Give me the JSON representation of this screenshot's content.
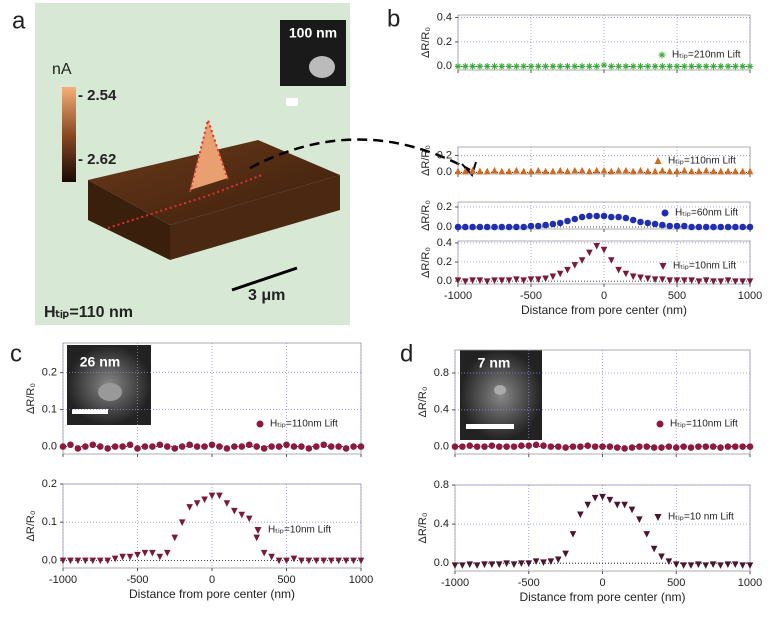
{
  "panel_labels": [
    "a",
    "b",
    "c",
    "d"
  ],
  "panel_a": {
    "unit": "nA",
    "colorbar_top": "- 2.54",
    "colorbar_bottom": "- 2.62",
    "inset_label": "100 nm",
    "scale_label": "3 μm",
    "caption": "Hₜᵢₚ=110 nm"
  },
  "insets": [
    "26 nm",
    "7 nm"
  ],
  "chart_data": [
    {
      "type": "scatter",
      "ylabel": "ΔR/R₀",
      "x": [
        -1000,
        -950,
        -900,
        -850,
        -800,
        -750,
        -700,
        -650,
        -600,
        -550,
        -500,
        -450,
        -400,
        -350,
        -300,
        -250,
        -200,
        -150,
        -100,
        -50,
        0,
        50,
        100,
        150,
        200,
        250,
        300,
        350,
        400,
        450,
        500,
        550,
        600,
        650,
        700,
        750,
        800,
        850,
        900,
        950,
        1000
      ],
      "series": [
        {
          "name": "Hₜᵢₚ=210nm Lift",
          "color": "#3aaa3a",
          "marker": "star",
          "values": [
            0,
            0,
            0,
            0,
            0,
            0,
            0,
            0,
            0,
            0,
            0,
            0,
            0,
            0,
            0,
            0,
            0,
            0,
            0,
            0,
            0.01,
            0,
            0,
            0,
            0,
            0,
            0,
            0,
            0,
            0,
            0,
            0,
            0,
            0,
            0,
            0,
            0,
            0,
            0,
            0,
            0
          ]
        }
      ],
      "xlim": [
        -1000,
        1000
      ],
      "xticks": [
        -1000,
        -500,
        0,
        500,
        1000
      ],
      "ylim": [
        -0.03,
        0.42
      ],
      "yticks": [
        {
          "value": 0,
          "label": "0.0"
        },
        0.2,
        0.4
      ],
      "grid": true
    },
    {
      "type": "scatter",
      "ylabel": "ΔR/R₀",
      "x": [
        -1000,
        -950,
        -900,
        -850,
        -800,
        -750,
        -700,
        -650,
        -600,
        -550,
        -500,
        -450,
        -400,
        -350,
        -300,
        -250,
        -200,
        -150,
        -100,
        -50,
        0,
        50,
        100,
        150,
        200,
        250,
        300,
        350,
        400,
        450,
        500,
        550,
        600,
        650,
        700,
        750,
        800,
        850,
        900,
        950,
        1000
      ],
      "series": [
        {
          "name": "Hₜᵢₚ=110nm  Lift",
          "color": "#d2691e",
          "marker": "triangle-up",
          "values": [
            0.01,
            0.01,
            0.02,
            0.01,
            0.01,
            0.02,
            0.01,
            0.01,
            0.02,
            0.01,
            0.01,
            0.02,
            0.01,
            0.01,
            0.02,
            0.01,
            0.02,
            0.02,
            0.01,
            0.02,
            0.02,
            0.01,
            0.02,
            0.02,
            0.01,
            0.02,
            0.01,
            0.01,
            0.02,
            0.01,
            0.01,
            0.02,
            0.01,
            0.01,
            0.02,
            0.01,
            0.01,
            0.01,
            0.01,
            0.01,
            0.01
          ]
        }
      ],
      "xlim": [
        -1000,
        1000
      ],
      "xticks": [
        -1000,
        -500,
        0,
        500,
        1000
      ],
      "ylim": [
        -0.02,
        0.3
      ],
      "yticks": [
        {
          "value": 0,
          "label": "0.0"
        },
        0.2
      ],
      "grid": true
    },
    {
      "type": "scatter",
      "ylabel": "ΔR/R₀",
      "x": [
        -1000,
        -950,
        -900,
        -850,
        -800,
        -750,
        -700,
        -650,
        -600,
        -550,
        -500,
        -450,
        -400,
        -350,
        -300,
        -250,
        -200,
        -150,
        -100,
        -50,
        0,
        50,
        100,
        150,
        200,
        250,
        300,
        350,
        400,
        450,
        500,
        550,
        600,
        650,
        700,
        750,
        800,
        850,
        900,
        950,
        1000
      ],
      "series": [
        {
          "name": "Hₜᵢₚ=60nm Lift",
          "color": "#1f2fb0",
          "marker": "circle",
          "values": [
            0,
            0,
            0,
            0,
            0,
            0,
            0,
            0,
            0,
            0,
            0.01,
            0.01,
            0.02,
            0.03,
            0.04,
            0.06,
            0.08,
            0.1,
            0.11,
            0.11,
            0.11,
            0.1,
            0.1,
            0.09,
            0.07,
            0.05,
            0.04,
            0.03,
            0.02,
            0.01,
            0.01,
            0.01,
            0,
            0,
            0,
            0,
            0,
            0,
            0,
            0,
            0
          ]
        }
      ],
      "xlim": [
        -1000,
        1000
      ],
      "xticks": [
        -1000,
        -500,
        0,
        500,
        1000
      ],
      "ylim": [
        -0.02,
        0.25
      ],
      "yticks": [
        {
          "value": 0,
          "label": "0.0"
        },
        0.2
      ],
      "grid": true
    },
    {
      "type": "scatter",
      "ylabel": "ΔR/R₀",
      "xlabel": "Distance from pore center (nm)",
      "show_xtick_labels": true,
      "x": [
        -1000,
        -950,
        -900,
        -850,
        -800,
        -750,
        -700,
        -650,
        -600,
        -550,
        -500,
        -450,
        -400,
        -350,
        -300,
        -250,
        -200,
        -150,
        -100,
        -50,
        0,
        50,
        100,
        150,
        200,
        250,
        300,
        350,
        400,
        450,
        500,
        550,
        600,
        650,
        700,
        750,
        800,
        850,
        900,
        950,
        1000
      ],
      "series": [
        {
          "name": "Hₜᵢₚ=10nm Lift",
          "color": "#7a1a3a",
          "marker": "triangle-down",
          "values": [
            0.01,
            0,
            0.01,
            0.01,
            0,
            0.01,
            0.01,
            0.01,
            0.02,
            0.01,
            0.02,
            0.02,
            0.03,
            0.05,
            0.08,
            0.12,
            0.17,
            0.22,
            0.3,
            0.37,
            0.33,
            0.22,
            0.12,
            0.08,
            0.05,
            0.04,
            0.03,
            0.02,
            0.02,
            0.01,
            0.01,
            0.01,
            0.01,
            0,
            0.01,
            0,
            0,
            0.01,
            0,
            0,
            0
          ]
        }
      ],
      "xlim": [
        -1000,
        1000
      ],
      "xticks": [
        -1000,
        -500,
        0,
        500,
        1000
      ],
      "ylim": [
        -0.03,
        0.42
      ],
      "yticks": [
        {
          "value": 0,
          "label": "0.0"
        },
        0.2,
        0.4
      ],
      "grid": true
    },
    {
      "type": "scatter",
      "ylabel": "ΔR/R₀",
      "x": [
        -1000,
        -950,
        -900,
        -850,
        -800,
        -750,
        -700,
        -650,
        -600,
        -550,
        -500,
        -450,
        -400,
        -350,
        -300,
        -250,
        -200,
        -150,
        -100,
        -50,
        0,
        50,
        100,
        150,
        200,
        250,
        300,
        350,
        400,
        450,
        500,
        550,
        600,
        650,
        700,
        750,
        800,
        850,
        900,
        950,
        1000
      ],
      "series": [
        {
          "name": "Hₜᵢₚ=110nm Lift",
          "color": "#8b1a3e",
          "marker": "circle",
          "values": [
            0,
            0.005,
            -0.005,
            0,
            0.005,
            0,
            -0.005,
            0,
            0,
            0.005,
            -0.005,
            0,
            0,
            0.005,
            0,
            -0.005,
            0,
            0.005,
            0,
            0,
            0.005,
            0,
            -0.005,
            0,
            0,
            0.005,
            0,
            -0.005,
            0,
            0,
            0.005,
            0,
            0,
            -0.005,
            0,
            0.005,
            0,
            0,
            -0.005,
            0,
            0
          ]
        }
      ],
      "xlim": [
        -1000,
        1000
      ],
      "xticks": [
        -1000,
        -500,
        0,
        500,
        1000
      ],
      "ylim": [
        -0.02,
        0.28
      ],
      "yticks": [
        {
          "value": 0,
          "label": "0.0"
        },
        0.1,
        0.2
      ],
      "grid": true
    },
    {
      "type": "scatter",
      "ylabel": "ΔR/R₀",
      "xlabel": "Distance from pore center (nm)",
      "show_xtick_labels": true,
      "x": [
        -1000,
        -950,
        -900,
        -850,
        -800,
        -750,
        -700,
        -650,
        -600,
        -550,
        -500,
        -450,
        -400,
        -350,
        -300,
        -250,
        -200,
        -150,
        -100,
        -50,
        0,
        50,
        100,
        150,
        200,
        250,
        300,
        350,
        400,
        450,
        500,
        550,
        600,
        650,
        700,
        750,
        800,
        850,
        900,
        950,
        1000
      ],
      "series": [
        {
          "name": "Hₜᵢₚ=10nm Lift",
          "color": "#7a1a3a",
          "marker": "triangle-down",
          "values": [
            0,
            0,
            0,
            0,
            0,
            0,
            0,
            0.005,
            0.01,
            0.01,
            0.015,
            0.02,
            0.02,
            0.01,
            0.02,
            0.06,
            0.1,
            0.14,
            0.15,
            0.16,
            0.17,
            0.17,
            0.15,
            0.13,
            0.12,
            0.11,
            0.06,
            0.02,
            0.01,
            0,
            0,
            0.005,
            0,
            0,
            0,
            0,
            0,
            0,
            0,
            0,
            0
          ]
        }
      ],
      "xlim": [
        -1000,
        1000
      ],
      "xticks": [
        -1000,
        -500,
        0,
        500,
        1000
      ],
      "ylim": [
        -0.02,
        0.2
      ],
      "yticks": [
        {
          "value": 0,
          "label": "0.0"
        },
        0.1,
        0.2
      ],
      "grid": true
    },
    {
      "type": "scatter",
      "ylabel": "ΔR/R₀",
      "x": [
        -1000,
        -950,
        -900,
        -850,
        -800,
        -750,
        -700,
        -650,
        -600,
        -550,
        -500,
        -450,
        -400,
        -350,
        -300,
        -250,
        -200,
        -150,
        -100,
        -50,
        0,
        50,
        100,
        150,
        200,
        250,
        300,
        350,
        400,
        450,
        500,
        550,
        600,
        650,
        700,
        750,
        800,
        850,
        900,
        950,
        1000
      ],
      "series": [
        {
          "name": "Hₜᵢₚ=110nm  Lift",
          "color": "#8b1a3e",
          "marker": "circle",
          "values": [
            0,
            0,
            0.01,
            0,
            0,
            0.01,
            0,
            0,
            0,
            0.01,
            0.01,
            0.02,
            0.01,
            0,
            0,
            -0.01,
            0,
            0,
            0.01,
            0,
            0,
            0,
            -0.01,
            -0.02,
            -0.01,
            0,
            0,
            -0.01,
            -0.01,
            0,
            -0.01,
            0,
            -0.01,
            0,
            0,
            0,
            -0.01,
            0,
            0,
            0,
            0
          ]
        }
      ],
      "xlim": [
        -1000,
        1000
      ],
      "xticks": [
        -1000,
        -500,
        0,
        500,
        1000
      ],
      "ylim": [
        -0.08,
        1.05
      ],
      "yticks": [
        {
          "value": 0,
          "label": "0.0"
        },
        0.4,
        0.8
      ],
      "grid": true
    },
    {
      "type": "scatter",
      "ylabel": "ΔR/R₀",
      "xlabel": "Distance from pore center (nm)",
      "show_xtick_labels": true,
      "x": [
        -1000,
        -950,
        -900,
        -850,
        -800,
        -750,
        -700,
        -650,
        -600,
        -550,
        -500,
        -450,
        -400,
        -350,
        -300,
        -250,
        -200,
        -150,
        -100,
        -50,
        0,
        50,
        100,
        150,
        200,
        250,
        300,
        350,
        400,
        450,
        500,
        550,
        600,
        650,
        700,
        750,
        800,
        850,
        900,
        950,
        1000
      ],
      "series": [
        {
          "name": "Hₜᵢₚ=10 nm Lift",
          "color": "#4a1530",
          "marker": "triangle-down",
          "values": [
            -0.02,
            -0.02,
            -0.01,
            -0.02,
            -0.01,
            -0.01,
            -0.01,
            0,
            -0.01,
            0,
            0,
            0.02,
            0.01,
            0.02,
            0.04,
            0.1,
            0.3,
            0.5,
            0.6,
            0.67,
            0.68,
            0.65,
            0.6,
            0.6,
            0.55,
            0.45,
            0.3,
            0.15,
            0.07,
            0.02,
            -0.01,
            -0.02,
            -0.02,
            -0.01,
            -0.02,
            -0.01,
            -0.02,
            -0.01,
            -0.01,
            -0.02,
            -0.02
          ]
        }
      ],
      "xlim": [
        -1000,
        1000
      ],
      "xticks": [
        -1000,
        -500,
        0,
        500,
        1000
      ],
      "ylim": [
        -0.08,
        0.8
      ],
      "yticks": [
        {
          "value": 0,
          "label": "0.0"
        },
        0.4,
        0.8
      ],
      "grid": true
    }
  ]
}
